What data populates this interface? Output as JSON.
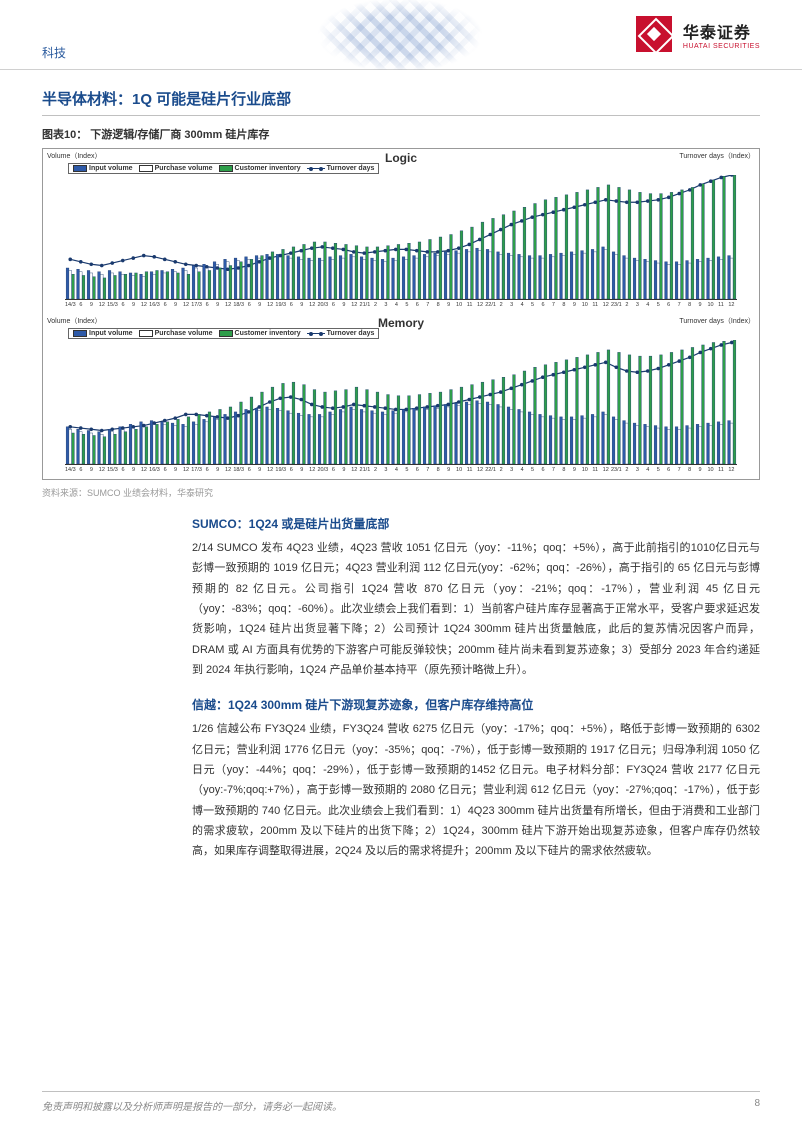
{
  "header": {
    "category": "科技",
    "logo_cn": "华泰证券",
    "logo_en": "HUATAI SECURITIES"
  },
  "section_title": "半导体材料：1Q 可能是硅片行业底部",
  "figure_caption": "图表10：  下游逻辑/存储厂商 300mm 硅片库存",
  "source_note": "资料来源：SUMCO 业绩会材料，华泰研究",
  "legend": {
    "input": "Input volume",
    "purchase": "Purchase volume",
    "inventory": "Customer inventory",
    "turnover": "Turnover days",
    "colors": {
      "input": "#2e5aa8",
      "purchase": "#ffffff",
      "inventory": "#2e9e4a",
      "line": "#1a3a6e"
    }
  },
  "axis_labels": {
    "left": "Volume（Index）",
    "right": "Turnover days（Index）"
  },
  "charts": [
    {
      "title": "Logic",
      "x": [
        "14/3",
        "6",
        "9",
        "12",
        "15/3",
        "6",
        "9",
        "12",
        "16/3",
        "6",
        "9",
        "12",
        "17/3",
        "6",
        "9",
        "12",
        "18/3",
        "6",
        "9",
        "12",
        "19/3",
        "6",
        "9",
        "12",
        "20/3",
        "6",
        "9",
        "12",
        "21/1",
        "2",
        "3",
        "4",
        "5",
        "6",
        "7",
        "8",
        "9",
        "10",
        "11",
        "12",
        "22/1",
        "2",
        "3",
        "4",
        "5",
        "6",
        "7",
        "8",
        "9",
        "10",
        "11",
        "12",
        "23/1",
        "2",
        "3",
        "4",
        "5",
        "6",
        "7",
        "8",
        "9",
        "10",
        "11",
        "12"
      ],
      "input": [
        25,
        24,
        23,
        22,
        23,
        22,
        21,
        20,
        22,
        23,
        24,
        25,
        27,
        28,
        30,
        32,
        33,
        34,
        35,
        36,
        36,
        35,
        34,
        33,
        33,
        34,
        35,
        36,
        34,
        33,
        32,
        33,
        34,
        35,
        36,
        37,
        38,
        39,
        40,
        41,
        40,
        38,
        37,
        36,
        35,
        35,
        36,
        37,
        38,
        39,
        40,
        42,
        38,
        35,
        33,
        32,
        31,
        30,
        30,
        31,
        32,
        33,
        34,
        35
      ],
      "purchase": [
        23,
        22,
        21,
        20,
        21,
        20,
        19,
        18,
        20,
        21,
        22,
        23,
        25,
        26,
        28,
        30,
        31,
        32,
        33,
        34,
        34,
        33,
        32,
        31,
        31,
        32,
        33,
        34,
        32,
        31,
        30,
        31,
        32,
        33,
        34,
        35,
        36,
        37,
        38,
        39,
        38,
        36,
        35,
        34,
        33,
        33,
        34,
        35,
        36,
        37,
        38,
        40,
        36,
        33,
        31,
        30,
        29,
        28,
        28,
        29,
        30,
        31,
        32,
        33
      ],
      "inventory": [
        20,
        19,
        18,
        17,
        19,
        20,
        21,
        22,
        23,
        22,
        21,
        20,
        22,
        23,
        25,
        27,
        30,
        32,
        35,
        38,
        40,
        42,
        44,
        46,
        46,
        45,
        44,
        43,
        42,
        42,
        43,
        44,
        45,
        46,
        48,
        50,
        52,
        55,
        58,
        62,
        65,
        68,
        71,
        74,
        77,
        80,
        82,
        84,
        86,
        88,
        90,
        92,
        90,
        88,
        86,
        85,
        85,
        86,
        88,
        90,
        93,
        96,
        99,
        100
      ],
      "turnover": [
        32,
        30,
        28,
        27,
        29,
        31,
        33,
        35,
        34,
        32,
        30,
        28,
        27,
        26,
        25,
        24,
        25,
        27,
        30,
        33,
        35,
        37,
        39,
        41,
        42,
        41,
        40,
        38,
        37,
        38,
        39,
        40,
        40,
        39,
        38,
        38,
        39,
        41,
        44,
        48,
        52,
        56,
        60,
        63,
        66,
        68,
        70,
        72,
        74,
        76,
        78,
        80,
        79,
        78,
        78,
        79,
        80,
        82,
        85,
        88,
        92,
        95,
        98,
        100
      ]
    },
    {
      "title": "Memory",
      "x": [
        "14/3",
        "6",
        "9",
        "12",
        "15/3",
        "6",
        "9",
        "12",
        "16/3",
        "6",
        "9",
        "12",
        "17/3",
        "6",
        "9",
        "12",
        "18/3",
        "6",
        "9",
        "12",
        "19/3",
        "6",
        "9",
        "12",
        "20/3",
        "6",
        "9",
        "12",
        "21/1",
        "2",
        "3",
        "4",
        "5",
        "6",
        "7",
        "8",
        "9",
        "10",
        "11",
        "12",
        "22/1",
        "2",
        "3",
        "4",
        "5",
        "6",
        "7",
        "8",
        "9",
        "10",
        "11",
        "12",
        "23/1",
        "2",
        "3",
        "4",
        "5",
        "6",
        "7",
        "8",
        "9",
        "10",
        "11",
        "12"
      ],
      "input": [
        30,
        28,
        27,
        26,
        28,
        30,
        32,
        34,
        35,
        34,
        33,
        32,
        34,
        36,
        38,
        40,
        42,
        44,
        45,
        46,
        45,
        43,
        41,
        40,
        40,
        42,
        44,
        46,
        44,
        43,
        42,
        43,
        44,
        45,
        46,
        47,
        48,
        49,
        50,
        51,
        50,
        48,
        46,
        44,
        42,
        40,
        39,
        38,
        38,
        39,
        40,
        42,
        38,
        35,
        33,
        32,
        31,
        30,
        30,
        31,
        32,
        33,
        34,
        35
      ],
      "purchase": [
        28,
        26,
        25,
        24,
        26,
        28,
        30,
        32,
        33,
        32,
        31,
        30,
        32,
        34,
        36,
        38,
        40,
        42,
        43,
        44,
        43,
        41,
        39,
        38,
        38,
        40,
        42,
        44,
        42,
        41,
        40,
        41,
        42,
        43,
        44,
        45,
        46,
        47,
        48,
        49,
        48,
        46,
        44,
        42,
        40,
        38,
        37,
        36,
        36,
        37,
        38,
        40,
        36,
        33,
        31,
        30,
        29,
        28,
        28,
        29,
        30,
        31,
        32,
        33
      ],
      "inventory": [
        25,
        24,
        23,
        22,
        24,
        26,
        28,
        30,
        32,
        34,
        36,
        38,
        40,
        42,
        44,
        46,
        50,
        54,
        58,
        62,
        65,
        66,
        64,
        60,
        58,
        59,
        60,
        62,
        60,
        58,
        56,
        55,
        55,
        56,
        57,
        58,
        60,
        62,
        64,
        66,
        68,
        70,
        72,
        75,
        78,
        80,
        82,
        84,
        86,
        88,
        90,
        92,
        90,
        88,
        87,
        87,
        88,
        90,
        92,
        94,
        96,
        98,
        99,
        100
      ],
      "turnover": [
        30,
        29,
        28,
        27,
        28,
        29,
        30,
        31,
        33,
        35,
        37,
        40,
        40,
        39,
        38,
        37,
        39,
        42,
        46,
        50,
        53,
        54,
        52,
        48,
        46,
        45,
        46,
        48,
        47,
        46,
        45,
        44,
        44,
        45,
        46,
        47,
        48,
        50,
        52,
        54,
        56,
        58,
        61,
        64,
        67,
        70,
        72,
        74,
        76,
        78,
        80,
        82,
        78,
        75,
        74,
        75,
        77,
        80,
        83,
        86,
        90,
        93,
        96,
        98
      ]
    }
  ],
  "body": [
    {
      "heading": "SUMCO：1Q24 或是硅片出货量底部",
      "text": "2/14 SUMCO 发布 4Q23 业绩，4Q23 营收 1051 亿日元（yoy：-11%；qoq：+5%），高于此前指引的1010亿日元与彭博一致预期的 1019 亿日元；4Q23 营业利润 112 亿日元(yoy：-62%；qoq：-26%），高于指引的 65 亿日元与彭博预期的 82 亿日元。公司指引 1Q24 营收 870 亿日元（yoy：-21%；qoq：-17%），营业利润 45 亿日元（yoy：-83%；qoq：-60%）。此次业绩会上我们看到：1）当前客户硅片库存显著高于正常水平，受客户要求延迟发货影响，1Q24 硅片出货显著下降；2）公司预计 1Q24 300mm 硅片出货量触底，此后的复苏情况因客户而异，DRAM 或 AI 方面具有优势的下游客户可能反弹较快；200mm 硅片尚未看到复苏迹象；3）受部分 2023 年合约递延到 2024 年执行影响，1Q24 产品单价基本持平（原先预计略微上升）。"
    },
    {
      "heading": "信越：1Q24 300mm 硅片下游现复苏迹象，但客户库存维持高位",
      "text": "1/26 信越公布 FY3Q24 业绩，FY3Q24 营收 6275 亿日元（yoy：-17%；qoq：+5%），略低于彭博一致预期的 6302 亿日元；营业利润 1776 亿日元（yoy：-35%；qoq：-7%），低于彭博一致预期的 1917 亿日元；归母净利润 1050 亿日元（yoy：-44%；qoq：-29%），低于彭博一致预期的1452 亿日元。电子材料分部：FY3Q24 营收 2177 亿日元（yoy:-7%;qoq:+7%），高于彭博一致预期的 2080 亿日元；营业利润 612 亿日元（yoy：-27%;qoq：-17%），低于彭博一致预期的 740 亿日元。此次业绩会上我们看到：1）4Q23 300mm 硅片出货量有所增长，但由于消费和工业部门的需求疲软，200mm 及以下硅片的出货下降；2）1Q24，300mm 硅片下游开始出现复苏迹象，但客户库存仍然较高，如果库存调整取得进展，2Q24 及以后的需求将提升；200mm 及以下硅片的需求依然疲软。"
    }
  ],
  "footer": {
    "disclaimer": "免责声明和披露以及分析师声明是报告的一部分，请务必一起阅读。",
    "page": "8"
  }
}
